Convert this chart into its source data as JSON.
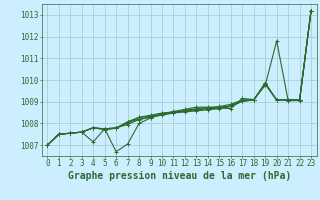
{
  "xlabel": "Graphe pression niveau de la mer (hPa)",
  "xlim": [
    -0.5,
    23.5
  ],
  "ylim": [
    1006.5,
    1013.5
  ],
  "yticks": [
    1007,
    1008,
    1009,
    1010,
    1011,
    1012,
    1013
  ],
  "xticks": [
    0,
    1,
    2,
    3,
    4,
    5,
    6,
    7,
    8,
    9,
    10,
    11,
    12,
    13,
    14,
    15,
    16,
    17,
    18,
    19,
    20,
    21,
    22,
    23
  ],
  "bg_color": "#cceeff",
  "grid_color": "#99cccc",
  "line_color": "#2d6a2d",
  "lines": [
    [
      1007.0,
      1007.5,
      1007.55,
      1007.6,
      1007.8,
      1007.75,
      1006.7,
      1007.05,
      1008.0,
      1008.25,
      1008.45,
      1008.55,
      1008.65,
      1008.75,
      1008.75,
      1008.72,
      1008.68,
      1009.15,
      1009.1,
      1009.75,
      1011.8,
      1009.05,
      1009.05,
      1013.2
    ],
    [
      1007.0,
      1007.5,
      1007.55,
      1007.6,
      1007.8,
      1007.75,
      1007.8,
      1008.05,
      1008.2,
      1008.3,
      1008.45,
      1008.52,
      1008.6,
      1008.68,
      1008.73,
      1008.78,
      1008.88,
      1009.08,
      1009.08,
      1009.82,
      1009.08,
      1009.08,
      1009.08,
      1013.2
    ],
    [
      1007.0,
      1007.5,
      1007.55,
      1007.6,
      1007.15,
      1007.75,
      1007.8,
      1007.95,
      1008.18,
      1008.28,
      1008.38,
      1008.48,
      1008.58,
      1008.63,
      1008.68,
      1008.73,
      1008.78,
      1009.02,
      1009.08,
      1009.82,
      1009.08,
      1009.08,
      1009.08,
      1013.2
    ],
    [
      1007.0,
      1007.5,
      1007.55,
      1007.6,
      1007.8,
      1007.72,
      1007.78,
      1008.08,
      1008.28,
      1008.38,
      1008.48,
      1008.52,
      1008.58,
      1008.63,
      1008.68,
      1008.73,
      1008.82,
      1009.08,
      1009.08,
      1009.88,
      1009.08,
      1009.08,
      1009.08,
      1013.2
    ],
    [
      1007.0,
      1007.5,
      1007.55,
      1007.6,
      1007.8,
      1007.72,
      1007.78,
      1008.02,
      1008.28,
      1008.33,
      1008.43,
      1008.48,
      1008.53,
      1008.58,
      1008.63,
      1008.68,
      1008.78,
      1009.02,
      1009.08,
      1009.82,
      1009.08,
      1009.08,
      1009.08,
      1013.2
    ]
  ],
  "marker": "+",
  "markersize": 3,
  "linewidth": 0.8,
  "xlabel_fontsize": 7,
  "tick_fontsize": 5.5
}
